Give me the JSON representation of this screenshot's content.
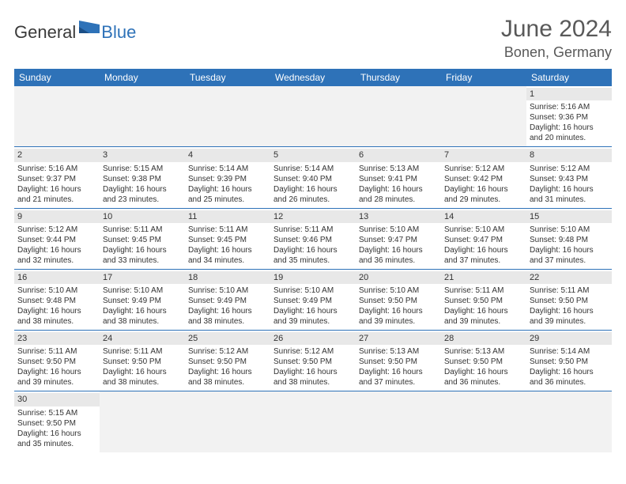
{
  "logo": {
    "part1": "General",
    "part2": "Blue",
    "color1": "#3a3a3a",
    "color2": "#2e72b8"
  },
  "header": {
    "title": "June 2024",
    "location": "Bonen, Germany"
  },
  "colors": {
    "header_bg": "#2e72b8",
    "header_text": "#ffffff",
    "daynum_bg": "#e8e8e8",
    "empty_bg": "#f2f2f2",
    "row_border": "#2e72b8",
    "body_text": "#333333",
    "title_text": "#595959"
  },
  "weekdays": [
    "Sunday",
    "Monday",
    "Tuesday",
    "Wednesday",
    "Thursday",
    "Friday",
    "Saturday"
  ],
  "weeks": [
    [
      {
        "empty": true
      },
      {
        "empty": true
      },
      {
        "empty": true
      },
      {
        "empty": true
      },
      {
        "empty": true
      },
      {
        "empty": true
      },
      {
        "n": "1",
        "sunrise": "Sunrise: 5:16 AM",
        "sunset": "Sunset: 9:36 PM",
        "d1": "Daylight: 16 hours",
        "d2": "and 20 minutes."
      }
    ],
    [
      {
        "n": "2",
        "sunrise": "Sunrise: 5:16 AM",
        "sunset": "Sunset: 9:37 PM",
        "d1": "Daylight: 16 hours",
        "d2": "and 21 minutes."
      },
      {
        "n": "3",
        "sunrise": "Sunrise: 5:15 AM",
        "sunset": "Sunset: 9:38 PM",
        "d1": "Daylight: 16 hours",
        "d2": "and 23 minutes."
      },
      {
        "n": "4",
        "sunrise": "Sunrise: 5:14 AM",
        "sunset": "Sunset: 9:39 PM",
        "d1": "Daylight: 16 hours",
        "d2": "and 25 minutes."
      },
      {
        "n": "5",
        "sunrise": "Sunrise: 5:14 AM",
        "sunset": "Sunset: 9:40 PM",
        "d1": "Daylight: 16 hours",
        "d2": "and 26 minutes."
      },
      {
        "n": "6",
        "sunrise": "Sunrise: 5:13 AM",
        "sunset": "Sunset: 9:41 PM",
        "d1": "Daylight: 16 hours",
        "d2": "and 28 minutes."
      },
      {
        "n": "7",
        "sunrise": "Sunrise: 5:12 AM",
        "sunset": "Sunset: 9:42 PM",
        "d1": "Daylight: 16 hours",
        "d2": "and 29 minutes."
      },
      {
        "n": "8",
        "sunrise": "Sunrise: 5:12 AM",
        "sunset": "Sunset: 9:43 PM",
        "d1": "Daylight: 16 hours",
        "d2": "and 31 minutes."
      }
    ],
    [
      {
        "n": "9",
        "sunrise": "Sunrise: 5:12 AM",
        "sunset": "Sunset: 9:44 PM",
        "d1": "Daylight: 16 hours",
        "d2": "and 32 minutes."
      },
      {
        "n": "10",
        "sunrise": "Sunrise: 5:11 AM",
        "sunset": "Sunset: 9:45 PM",
        "d1": "Daylight: 16 hours",
        "d2": "and 33 minutes."
      },
      {
        "n": "11",
        "sunrise": "Sunrise: 5:11 AM",
        "sunset": "Sunset: 9:45 PM",
        "d1": "Daylight: 16 hours",
        "d2": "and 34 minutes."
      },
      {
        "n": "12",
        "sunrise": "Sunrise: 5:11 AM",
        "sunset": "Sunset: 9:46 PM",
        "d1": "Daylight: 16 hours",
        "d2": "and 35 minutes."
      },
      {
        "n": "13",
        "sunrise": "Sunrise: 5:10 AM",
        "sunset": "Sunset: 9:47 PM",
        "d1": "Daylight: 16 hours",
        "d2": "and 36 minutes."
      },
      {
        "n": "14",
        "sunrise": "Sunrise: 5:10 AM",
        "sunset": "Sunset: 9:47 PM",
        "d1": "Daylight: 16 hours",
        "d2": "and 37 minutes."
      },
      {
        "n": "15",
        "sunrise": "Sunrise: 5:10 AM",
        "sunset": "Sunset: 9:48 PM",
        "d1": "Daylight: 16 hours",
        "d2": "and 37 minutes."
      }
    ],
    [
      {
        "n": "16",
        "sunrise": "Sunrise: 5:10 AM",
        "sunset": "Sunset: 9:48 PM",
        "d1": "Daylight: 16 hours",
        "d2": "and 38 minutes."
      },
      {
        "n": "17",
        "sunrise": "Sunrise: 5:10 AM",
        "sunset": "Sunset: 9:49 PM",
        "d1": "Daylight: 16 hours",
        "d2": "and 38 minutes."
      },
      {
        "n": "18",
        "sunrise": "Sunrise: 5:10 AM",
        "sunset": "Sunset: 9:49 PM",
        "d1": "Daylight: 16 hours",
        "d2": "and 38 minutes."
      },
      {
        "n": "19",
        "sunrise": "Sunrise: 5:10 AM",
        "sunset": "Sunset: 9:49 PM",
        "d1": "Daylight: 16 hours",
        "d2": "and 39 minutes."
      },
      {
        "n": "20",
        "sunrise": "Sunrise: 5:10 AM",
        "sunset": "Sunset: 9:50 PM",
        "d1": "Daylight: 16 hours",
        "d2": "and 39 minutes."
      },
      {
        "n": "21",
        "sunrise": "Sunrise: 5:11 AM",
        "sunset": "Sunset: 9:50 PM",
        "d1": "Daylight: 16 hours",
        "d2": "and 39 minutes."
      },
      {
        "n": "22",
        "sunrise": "Sunrise: 5:11 AM",
        "sunset": "Sunset: 9:50 PM",
        "d1": "Daylight: 16 hours",
        "d2": "and 39 minutes."
      }
    ],
    [
      {
        "n": "23",
        "sunrise": "Sunrise: 5:11 AM",
        "sunset": "Sunset: 9:50 PM",
        "d1": "Daylight: 16 hours",
        "d2": "and 39 minutes."
      },
      {
        "n": "24",
        "sunrise": "Sunrise: 5:11 AM",
        "sunset": "Sunset: 9:50 PM",
        "d1": "Daylight: 16 hours",
        "d2": "and 38 minutes."
      },
      {
        "n": "25",
        "sunrise": "Sunrise: 5:12 AM",
        "sunset": "Sunset: 9:50 PM",
        "d1": "Daylight: 16 hours",
        "d2": "and 38 minutes."
      },
      {
        "n": "26",
        "sunrise": "Sunrise: 5:12 AM",
        "sunset": "Sunset: 9:50 PM",
        "d1": "Daylight: 16 hours",
        "d2": "and 38 minutes."
      },
      {
        "n": "27",
        "sunrise": "Sunrise: 5:13 AM",
        "sunset": "Sunset: 9:50 PM",
        "d1": "Daylight: 16 hours",
        "d2": "and 37 minutes."
      },
      {
        "n": "28",
        "sunrise": "Sunrise: 5:13 AM",
        "sunset": "Sunset: 9:50 PM",
        "d1": "Daylight: 16 hours",
        "d2": "and 36 minutes."
      },
      {
        "n": "29",
        "sunrise": "Sunrise: 5:14 AM",
        "sunset": "Sunset: 9:50 PM",
        "d1": "Daylight: 16 hours",
        "d2": "and 36 minutes."
      }
    ],
    [
      {
        "n": "30",
        "sunrise": "Sunrise: 5:15 AM",
        "sunset": "Sunset: 9:50 PM",
        "d1": "Daylight: 16 hours",
        "d2": "and 35 minutes."
      },
      {
        "empty": true
      },
      {
        "empty": true
      },
      {
        "empty": true
      },
      {
        "empty": true
      },
      {
        "empty": true
      },
      {
        "empty": true
      }
    ]
  ]
}
